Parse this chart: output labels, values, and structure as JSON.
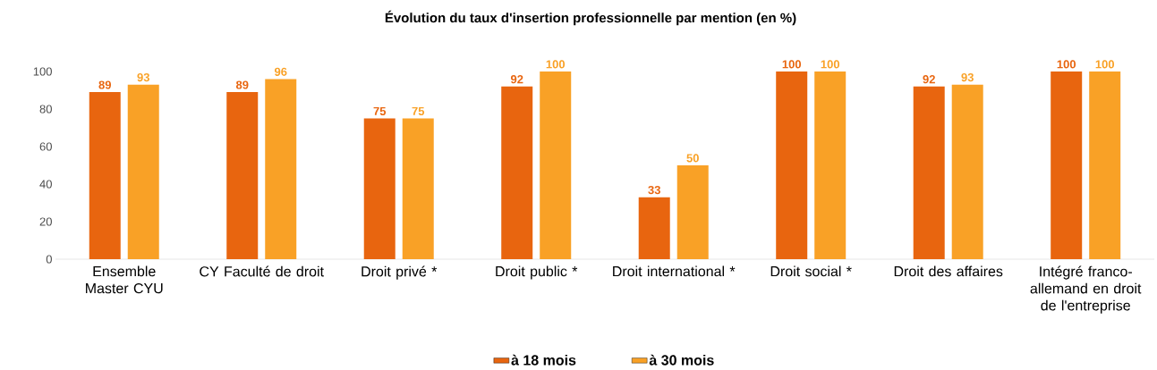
{
  "chart_data": {
    "type": "bar",
    "title": "Évolution du taux d'insertion  professionnelle  par mention  (en %)",
    "categories": [
      "Ensemble Master CYU",
      "CY Faculté de droit",
      "Droit privé *",
      "Droit public *",
      "Droit international *",
      "Droit social *",
      "Droit des affaires",
      "Intégré franco-allemand en droit de l'entreprise"
    ],
    "series": [
      {
        "name": "à 18 mois",
        "color": "#e8650f",
        "values": [
          89,
          89,
          75,
          92,
          33,
          100,
          92,
          100
        ]
      },
      {
        "name": "à 30 mois",
        "color": "#f9a126",
        "values": [
          93,
          96,
          75,
          100,
          50,
          100,
          93,
          100
        ]
      }
    ],
    "ylim": [
      0,
      100
    ],
    "yticks": [
      0,
      20,
      40,
      60,
      80,
      100
    ],
    "data_labels": true,
    "legend": "bottom",
    "grid": false
  }
}
